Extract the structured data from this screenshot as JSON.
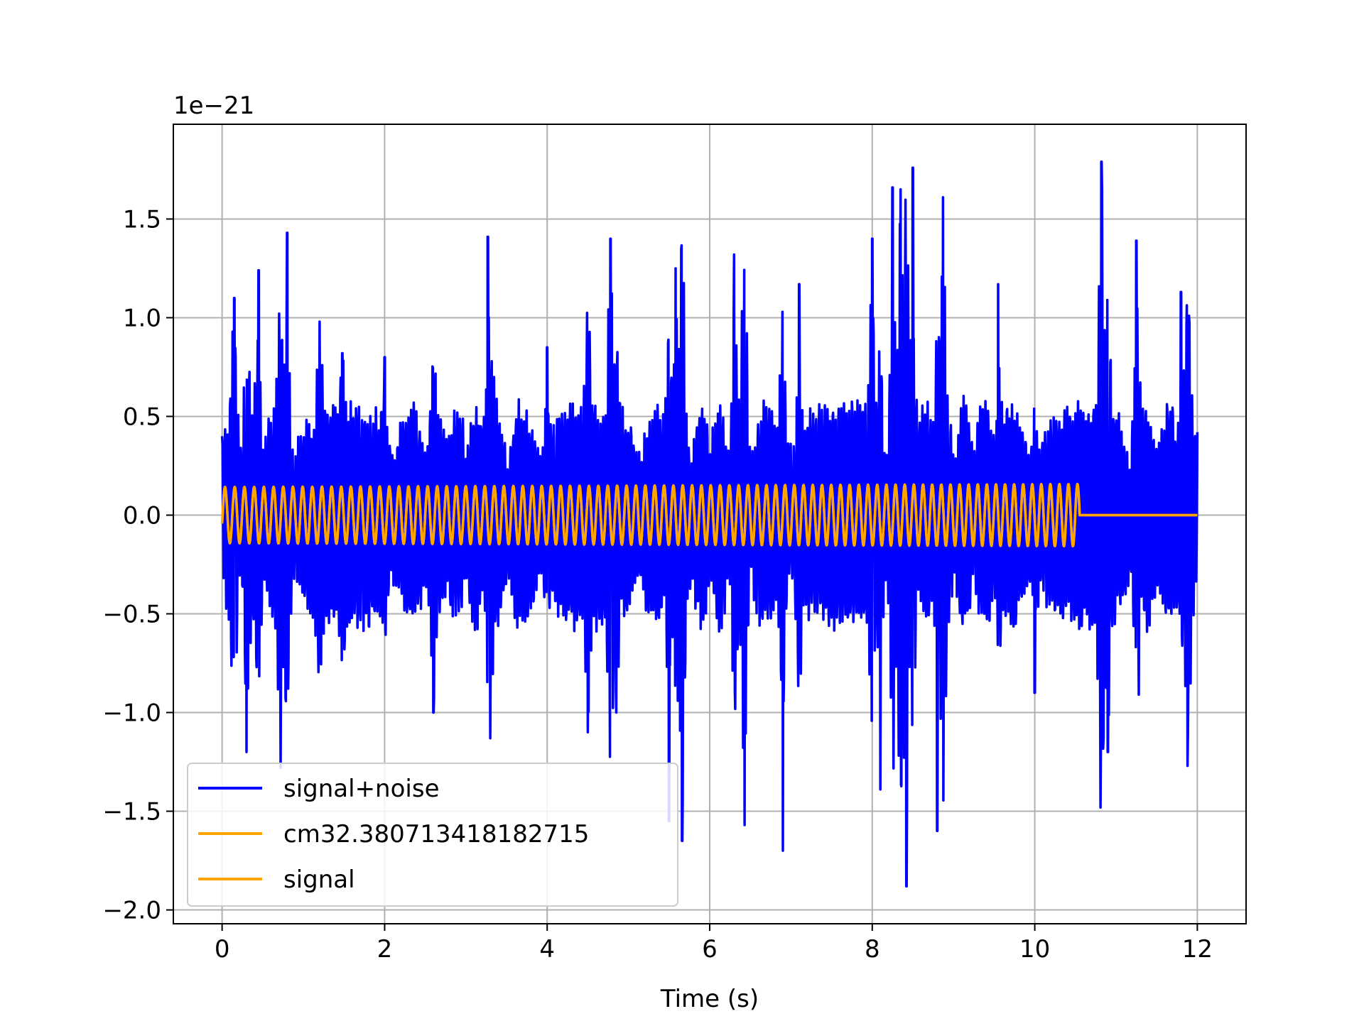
{
  "chart_data": {
    "type": "line",
    "title": "",
    "xlabel": "Time (s)",
    "ylabel": "",
    "y_offset_text": "1e−21",
    "y_scale": 1e-21,
    "xlim": [
      -0.6,
      12.6
    ],
    "ylim": [
      -2.07,
      1.98
    ],
    "x_ticks": [
      0,
      2,
      4,
      6,
      8,
      10,
      12
    ],
    "x_tick_labels": [
      "0",
      "2",
      "4",
      "6",
      "8",
      "10",
      "12"
    ],
    "y_ticks": [
      -2.0,
      -1.5,
      -1.0,
      -0.5,
      0.0,
      0.5,
      1.0,
      1.5
    ],
    "y_tick_labels": [
      "−2.0",
      "−1.5",
      "−1.0",
      "−0.5",
      "0.0",
      "0.5",
      "1.0",
      "1.5"
    ],
    "grid": true,
    "legend_position": "lower-left",
    "series": [
      {
        "name": "signal+noise",
        "color": "#0000ff",
        "style": "noisy-oscillation",
        "x_start": 0.0,
        "x_end": 12.0,
        "approx_amplitude": 1.0,
        "approx_max": 1.79,
        "approx_min": -1.88,
        "envelope_peaks": [
          [
            0.0,
            0.4
          ],
          [
            0.15,
            1.1
          ],
          [
            0.3,
            -1.2
          ],
          [
            0.45,
            1.24
          ],
          [
            0.72,
            -1.28
          ],
          [
            0.8,
            1.43
          ],
          [
            1.2,
            0.98
          ],
          [
            1.48,
            0.82
          ],
          [
            2.0,
            0.8
          ],
          [
            2.6,
            -1.0
          ],
          [
            3.27,
            1.41
          ],
          [
            3.3,
            -1.13
          ],
          [
            4.0,
            0.85
          ],
          [
            4.5,
            -1.1
          ],
          [
            4.78,
            1.4
          ],
          [
            4.85,
            -1.0
          ],
          [
            5.5,
            -1.55
          ],
          [
            5.58,
            1.25
          ],
          [
            5.66,
            -1.65
          ],
          [
            6.3,
            1.32
          ],
          [
            6.43,
            -1.57
          ],
          [
            6.9,
            -1.7
          ],
          [
            7.1,
            1.17
          ],
          [
            8.0,
            1.4
          ],
          [
            8.1,
            -1.39
          ],
          [
            8.25,
            1.66
          ],
          [
            8.35,
            1.65
          ],
          [
            8.42,
            -1.88
          ],
          [
            8.5,
            1.76
          ],
          [
            8.8,
            -1.6
          ],
          [
            8.87,
            1.61
          ],
          [
            9.55,
            1.17
          ],
          [
            10.0,
            -0.9
          ],
          [
            10.82,
            1.79
          ],
          [
            10.9,
            -1.2
          ],
          [
            11.25,
            1.39
          ],
          [
            11.8,
            1.13
          ],
          [
            11.88,
            -1.27
          ],
          [
            12.0,
            0.42
          ]
        ]
      },
      {
        "name": "cm32.380713418182715",
        "color": "#ffa500",
        "style": "sinusoid",
        "x_start": 0.0,
        "x_end": 10.55,
        "approx_amplitude": 0.15,
        "approx_cycles": 88,
        "after_end_value": 0.0
      },
      {
        "name": "signal",
        "color": "#ffa500",
        "style": "sinusoid",
        "x_start": 0.0,
        "x_end": 10.55,
        "approx_amplitude": 0.15,
        "approx_cycles": 88,
        "after_end_value": 0.0
      }
    ]
  }
}
